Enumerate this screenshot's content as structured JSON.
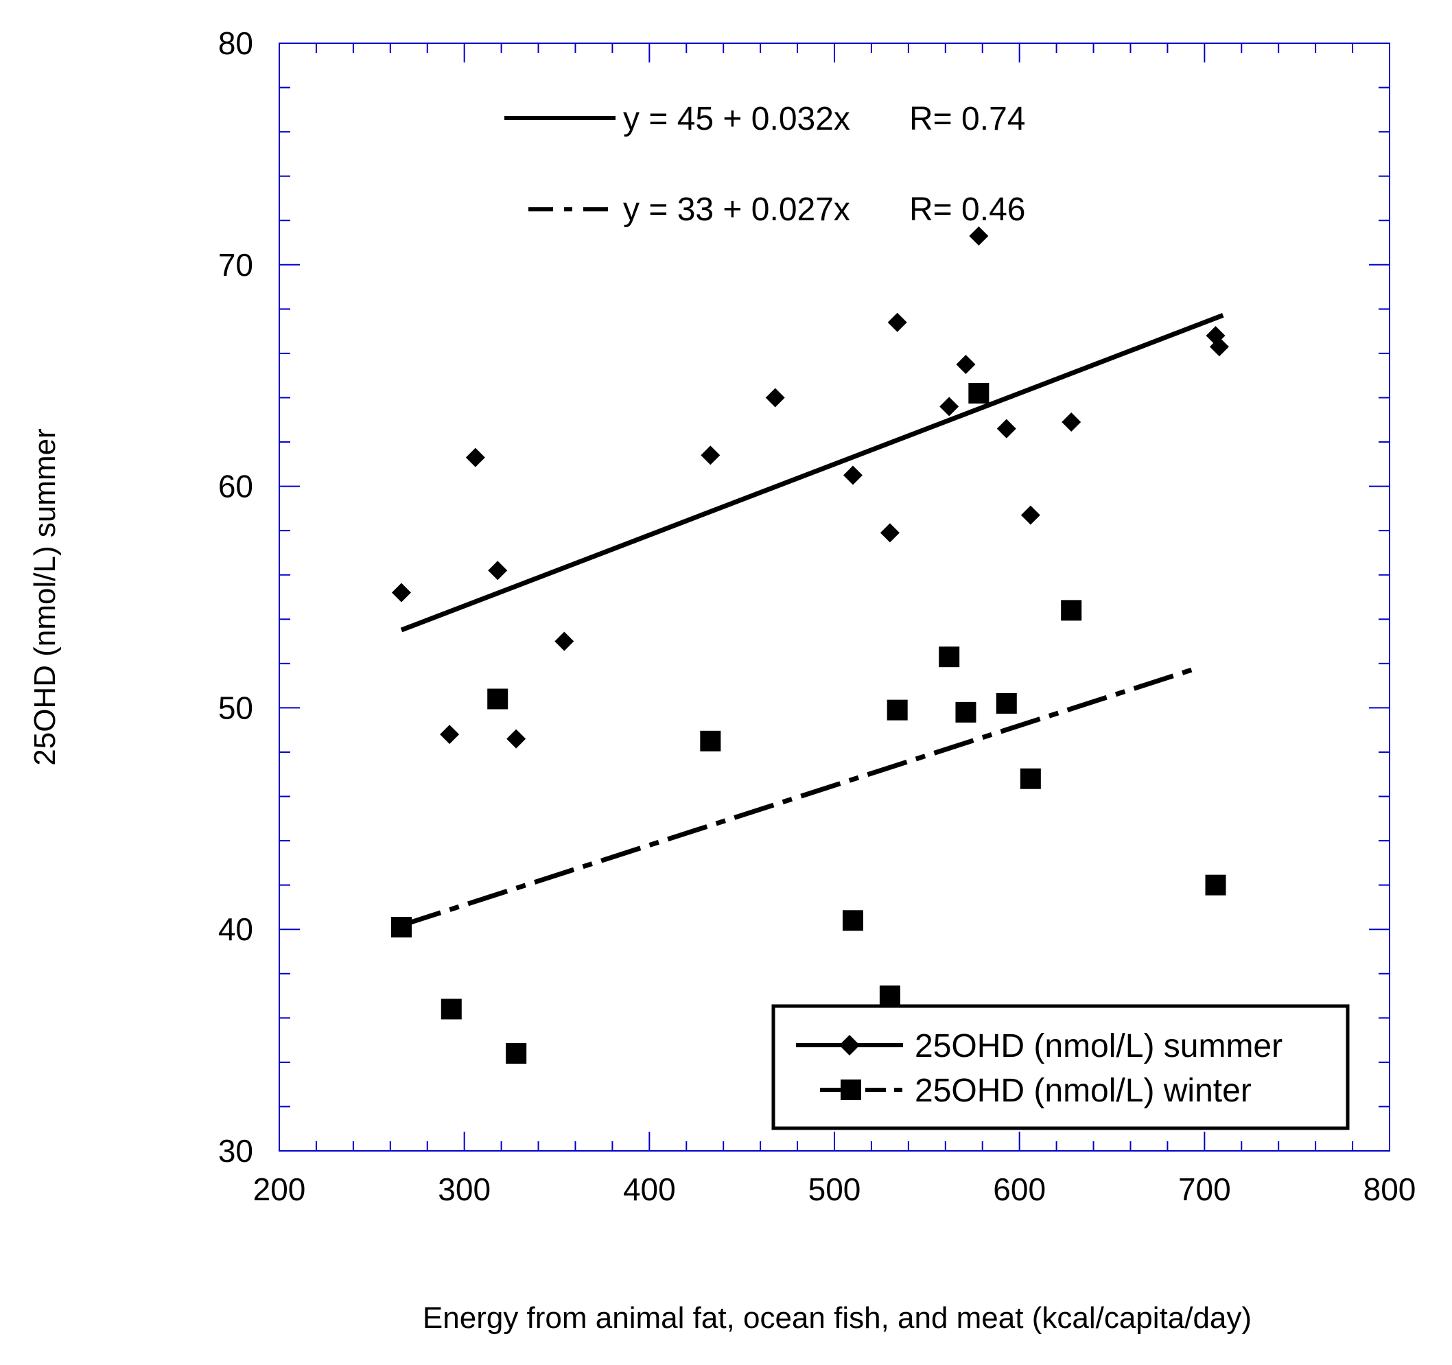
{
  "chart_data": {
    "type": "scatter",
    "title": "",
    "xlabel": "Energy from animal fat, ocean fish, and meat (kcal/capita/day)",
    "ylabel": "25OHD (nmol/L) summer",
    "xlim": [
      200,
      800
    ],
    "ylim": [
      30,
      80
    ],
    "x_ticks": [
      200,
      300,
      400,
      500,
      600,
      700,
      800
    ],
    "y_ticks": [
      30,
      40,
      50,
      60,
      70,
      80
    ],
    "x_minor_step": 20,
    "y_minor_step": 2,
    "axis_color": "#0000cc",
    "grid": false,
    "legend_position": "bottom-right",
    "series": [
      {
        "name": "25OHD (nmol/L) summer",
        "marker": "diamond",
        "line_style": "solid",
        "color": "#000000",
        "points": [
          [
            266,
            55.2
          ],
          [
            292,
            48.8
          ],
          [
            306,
            61.3
          ],
          [
            318,
            56.2
          ],
          [
            328,
            48.6
          ],
          [
            354,
            53.0
          ],
          [
            433,
            61.4
          ],
          [
            468,
            64.0
          ],
          [
            510,
            60.5
          ],
          [
            530,
            57.9
          ],
          [
            534,
            67.4
          ],
          [
            562,
            63.6
          ],
          [
            571,
            65.5
          ],
          [
            578,
            71.3
          ],
          [
            593,
            62.6
          ],
          [
            606,
            58.7
          ],
          [
            628,
            62.9
          ],
          [
            706,
            66.8
          ],
          [
            708,
            66.3
          ]
        ]
      },
      {
        "name": "25OHD (nmol/L) winter",
        "marker": "square",
        "line_style": "dashed",
        "color": "#000000",
        "points": [
          [
            266,
            40.1
          ],
          [
            293,
            36.4
          ],
          [
            318,
            50.4
          ],
          [
            328,
            34.4
          ],
          [
            433,
            48.5
          ],
          [
            510,
            40.4
          ],
          [
            530,
            37.0
          ],
          [
            534,
            49.9
          ],
          [
            562,
            52.3
          ],
          [
            571,
            49.8
          ],
          [
            578,
            64.2
          ],
          [
            593,
            50.2
          ],
          [
            606,
            46.8
          ],
          [
            628,
            54.4
          ],
          [
            706,
            42.0
          ]
        ]
      }
    ],
    "fits": [
      {
        "series": "25OHD (nmol/L) summer",
        "equation": "y = 45 + 0.032x",
        "r_label": "R= 0.74",
        "intercept": 45,
        "slope": 0.032,
        "x_range": [
          266,
          710
        ],
        "line_style": "solid"
      },
      {
        "series": "25OHD (nmol/L) winter",
        "equation": "y = 33 + 0.027x",
        "r_label": "R= 0.46",
        "intercept": 33,
        "slope": 0.027,
        "x_range": [
          266,
          693
        ],
        "line_style": "dashed"
      }
    ]
  }
}
